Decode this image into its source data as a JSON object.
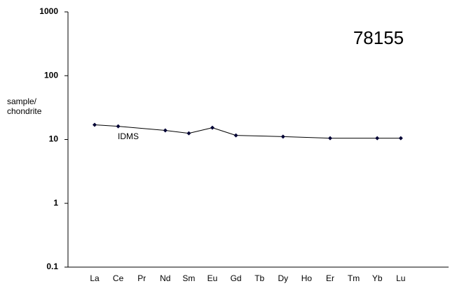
{
  "chart_data": {
    "type": "line",
    "title": "78155",
    "annotation": "IDMS",
    "y_label": [
      "sample/",
      "chondrite"
    ],
    "categories": [
      "La",
      "Ce",
      "Pr",
      "Nd",
      "Sm",
      "Eu",
      "Gd",
      "Tb",
      "Dy",
      "Ho",
      "Er",
      "Tm",
      "Yb",
      "Lu"
    ],
    "series": [
      {
        "name": "IDMS",
        "color": "#000033",
        "values": [
          17,
          16.1,
          null,
          13.9,
          12.5,
          15.3,
          11.6,
          null,
          11.1,
          null,
          10.5,
          null,
          10.5,
          10.5
        ]
      }
    ],
    "log_scale": true,
    "ylim": [
      0.1,
      1000
    ],
    "yticks": [
      0.1,
      1,
      10,
      100,
      1000
    ],
    "grid": false
  }
}
